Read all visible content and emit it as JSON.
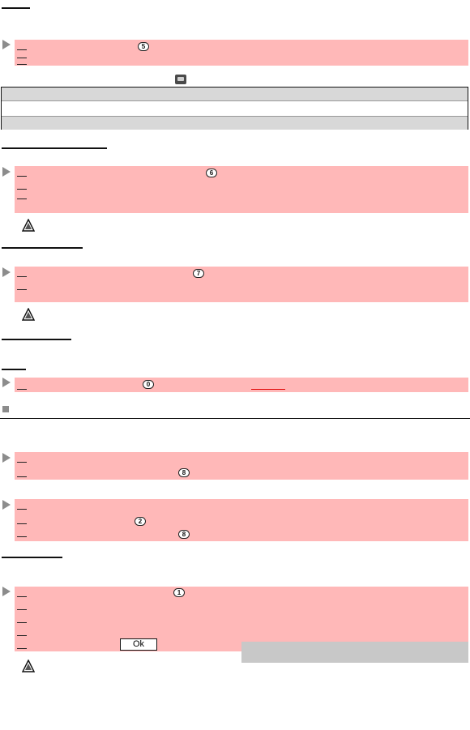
{
  "badges": {
    "b1": "5",
    "b2": "6",
    "b3": "7",
    "b4": "0",
    "b5": "8",
    "b6": "2",
    "b7": "8",
    "b8": "1"
  },
  "ok_button": {
    "label": "Ok"
  },
  "icons": {
    "arrow": "triangle-right-icon",
    "warning": "warning-triangle-icon",
    "phone": "phone-icon"
  },
  "colors": {
    "step_block": "#ffb8b8",
    "table_gray": "#d8d8d8",
    "link_underline": "#e00000"
  }
}
